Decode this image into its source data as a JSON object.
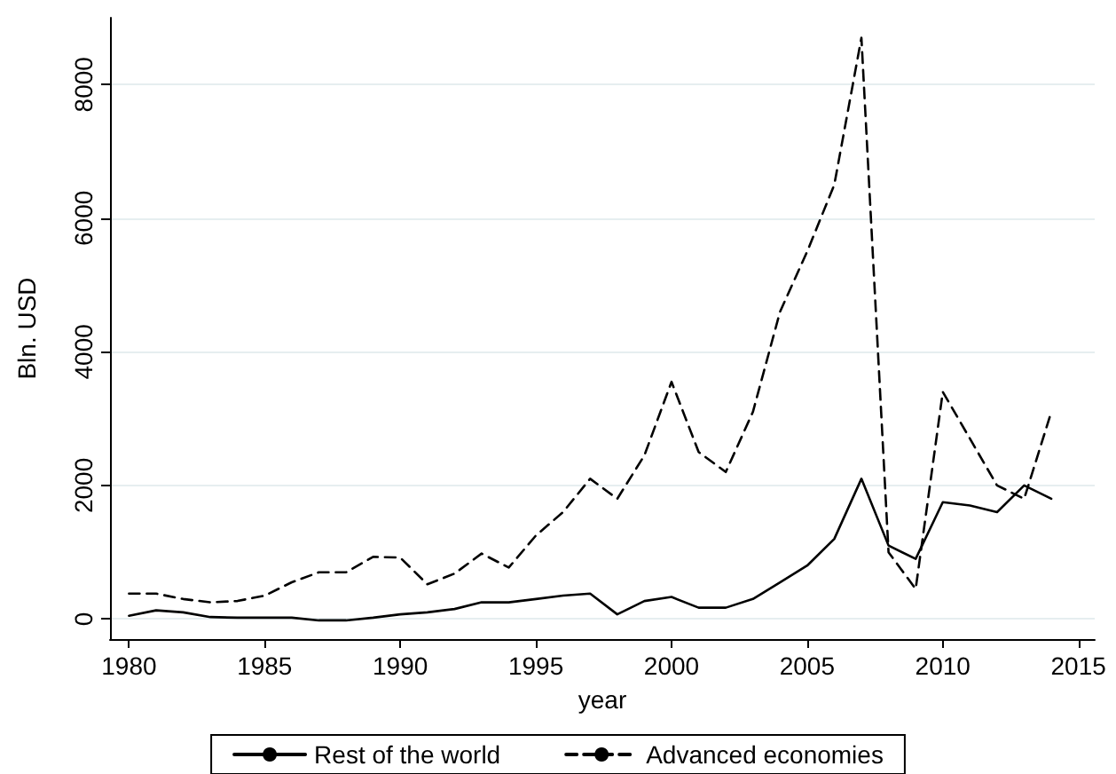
{
  "chart_data": {
    "type": "line",
    "xlabel": "year",
    "ylabel": "Bln. USD",
    "x": [
      1980,
      1981,
      1982,
      1983,
      1984,
      1985,
      1986,
      1987,
      1988,
      1989,
      1990,
      1991,
      1992,
      1993,
      1994,
      1995,
      1996,
      1997,
      1998,
      1999,
      2000,
      2001,
      2002,
      2003,
      2004,
      2005,
      2006,
      2007,
      2008,
      2009,
      2010,
      2011,
      2012,
      2013,
      2014
    ],
    "series": [
      {
        "name": "Rest of the world",
        "color": "#000000",
        "line_style": "solid",
        "values": [
          50,
          130,
          100,
          30,
          20,
          20,
          20,
          -20,
          -20,
          20,
          70,
          100,
          150,
          250,
          250,
          300,
          350,
          380,
          70,
          270,
          330,
          170,
          170,
          300,
          550,
          800,
          1200,
          2100,
          1100,
          900,
          1750,
          1700,
          1600,
          2000,
          1800
        ]
      },
      {
        "name": "Advanced economies",
        "color": "#000000",
        "line_style": "dashed",
        "values": [
          380,
          380,
          300,
          250,
          270,
          350,
          550,
          700,
          700,
          930,
          920,
          520,
          680,
          980,
          770,
          1250,
          1600,
          2100,
          1800,
          2450,
          3550,
          2500,
          2200,
          3100,
          4600,
          5500,
          6500,
          8700,
          1000,
          450,
          3400,
          2700,
          2000,
          1800,
          3100
        ]
      }
    ],
    "xlim": [
      1979.3,
      2015.6
    ],
    "xticks": [
      1980,
      1985,
      1990,
      1995,
      2000,
      2005,
      2010,
      2015
    ],
    "ylim": [
      -300,
      9000
    ],
    "yticks": [
      0,
      2000,
      4000,
      6000,
      8000
    ],
    "grid": "y",
    "legend": "bottom",
    "marker": "none"
  }
}
